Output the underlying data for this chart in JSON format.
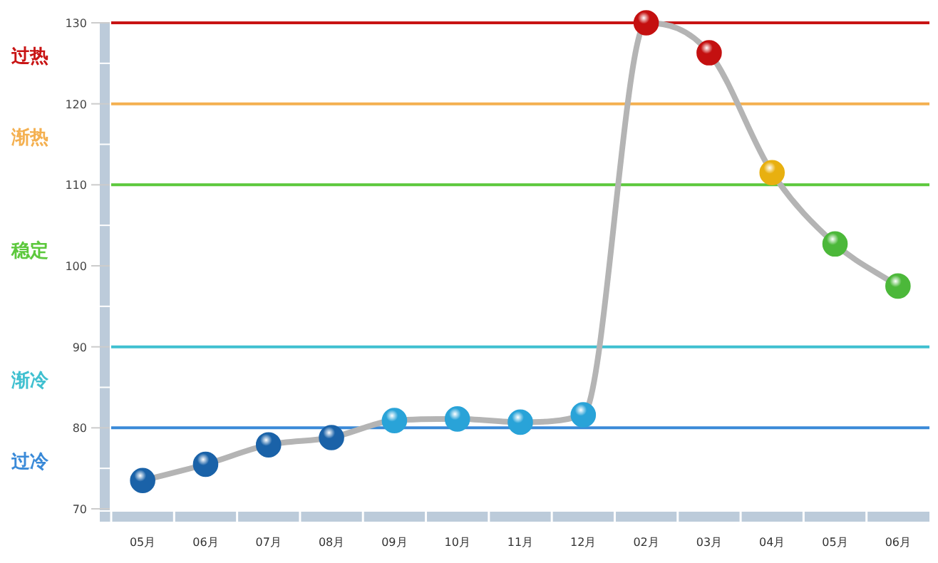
{
  "chart_data": {
    "type": "line",
    "categories": [
      "05月",
      "06月",
      "07月",
      "08月",
      "09月",
      "10月",
      "11月",
      "12月",
      "02月",
      "03月",
      "04月",
      "05月",
      "06月"
    ],
    "series": [
      {
        "color": "#b4b4b4",
        "colors": [
          "#1a62a8",
          "#1a62a8",
          "#1a62a8",
          "#1a62a8",
          "#29a3d8",
          "#29a3d8",
          "#29a3d8",
          "#29a3d8",
          "#c41010",
          "#c41010",
          "#e8b010",
          "#4cb83a",
          "#4cb83a"
        ],
        "values": [
          73.5,
          75.5,
          77.9,
          78.8,
          80.9,
          81.1,
          80.7,
          81.6,
          130,
          126.3,
          111.5,
          102.7,
          97.5
        ]
      }
    ],
    "ylim": [
      70,
      130
    ],
    "yticks": [
      70,
      80,
      90,
      100,
      110,
      120,
      130
    ],
    "marker": "circle",
    "grid": false,
    "ref_lines": [
      {
        "axis": "y",
        "value": 130,
        "color": "#c81414"
      },
      {
        "axis": "y",
        "value": 120,
        "color": "#f4b050"
      },
      {
        "axis": "y",
        "value": 110,
        "color": "#5cc83c"
      },
      {
        "axis": "y",
        "value": 90,
        "color": "#40c0d0"
      },
      {
        "axis": "y",
        "value": 80,
        "color": "#3a8ad8"
      }
    ],
    "annotations": [
      "过热",
      "渐热",
      "稳定",
      "渐冷",
      "过冷"
    ]
  }
}
